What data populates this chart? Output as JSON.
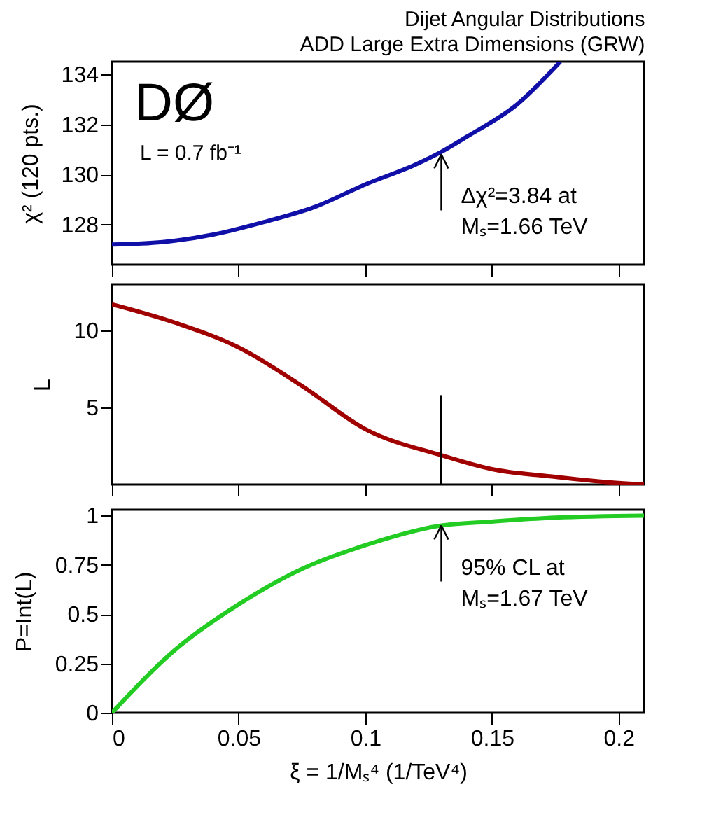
{
  "chart_data": [
    {
      "type": "line",
      "title": "Dijet Angular Distributions",
      "subtitle": "ADD Large Extra Dimensions (GRW)",
      "ylabel": "χ² (120 pts.)",
      "xlim": [
        0,
        0.21
      ],
      "xticks": [
        0,
        0.05,
        0.1,
        0.15,
        0.2
      ],
      "ylim": [
        126.4,
        134.5
      ],
      "yticks": [
        128,
        130,
        132,
        134
      ],
      "tick_labels": "y",
      "annotations": [
        "DØ",
        "L = 0.7 fb⁻¹",
        {
          "text": "Δχ²=3.84 at\nMₛ=1.66 TeV",
          "x": 0.13,
          "y": 130.8
        }
      ],
      "series": [
        {
          "color": "#1010a8",
          "x": [
            0,
            0.02,
            0.04,
            0.06,
            0.08,
            0.1,
            0.12,
            0.13,
            0.14,
            0.16,
            0.177
          ],
          "values": [
            127.2,
            127.3,
            127.6,
            128.1,
            128.7,
            129.6,
            130.4,
            130.9,
            131.5,
            132.8,
            134.5
          ]
        }
      ]
    },
    {
      "type": "line",
      "ylabel": "L",
      "xlim": [
        0,
        0.21
      ],
      "xticks": [
        0,
        0.05,
        0.1,
        0.15,
        0.2
      ],
      "ylim": [
        0,
        13
      ],
      "yticks": [
        5,
        10
      ],
      "tick_labels": "y",
      "series": [
        {
          "color": "#a00000",
          "x": [
            0,
            0.025,
            0.05,
            0.075,
            0.1,
            0.13,
            0.15,
            0.175,
            0.2,
            0.21
          ],
          "values": [
            11.7,
            10.5,
            8.9,
            6.4,
            3.6,
            1.9,
            1.0,
            0.5,
            0.1,
            0
          ]
        },
        {
          "color": "#000000",
          "x": [
            0.13,
            0.13
          ],
          "values": [
            0,
            5.8
          ]
        }
      ]
    },
    {
      "type": "line",
      "ylabel": "P=Int(L)",
      "xlabel": "ξ = 1/Mₛ⁴   (1/TeV⁴)",
      "xlim": [
        0,
        0.21
      ],
      "xticks": [
        0,
        0.05,
        0.1,
        0.15,
        0.2
      ],
      "ylim": [
        0,
        1.03
      ],
      "yticks": [
        0,
        0.25,
        0.5,
        0.75,
        1
      ],
      "annotations": [
        {
          "text": "95% CL at\nMₛ=1.67 TeV",
          "x": 0.13,
          "y": 0.95
        }
      ],
      "series": [
        {
          "color": "#22cc22",
          "x": [
            0,
            0.025,
            0.05,
            0.075,
            0.1,
            0.13,
            0.15,
            0.175,
            0.21
          ],
          "values": [
            0,
            0.32,
            0.55,
            0.73,
            0.85,
            0.95,
            0.97,
            0.99,
            1.0
          ]
        }
      ]
    }
  ]
}
